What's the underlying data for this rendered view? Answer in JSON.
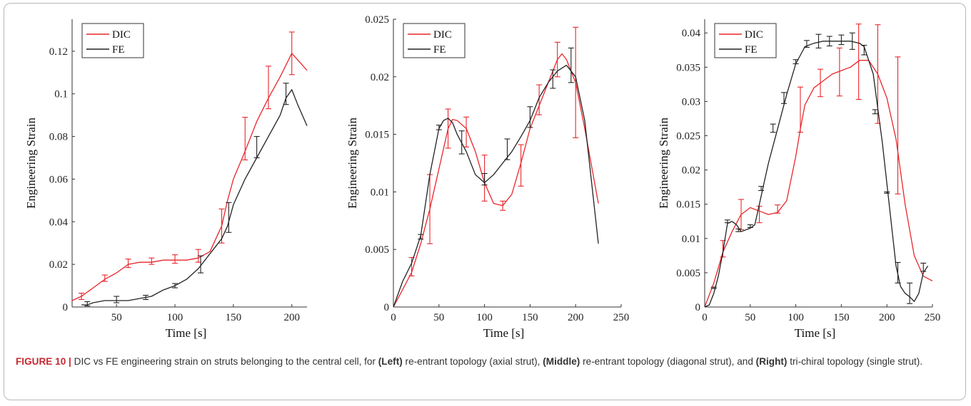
{
  "caption": {
    "label": "FIGURE 10 |",
    "parts": [
      "DIC vs FE engineering strain on struts belonging to the central cell, for ",
      "(Left)",
      " re-entrant topology (axial strut), ",
      "(Middle)",
      " re-entrant topology (diagonal strut), and ",
      "(Right)",
      " tri-chiral topology (single strut)."
    ]
  },
  "colors": {
    "DIC": "#e8262b",
    "FE": "#222222"
  },
  "chart_data": [
    {
      "type": "line",
      "name": "left",
      "xlabel": "Time [s]",
      "ylabel": "Engineering Strain",
      "xlim": [
        12,
        213
      ],
      "ylim": [
        0,
        0.135
      ],
      "xticks": [
        50,
        100,
        150,
        200
      ],
      "xtick_labels": [
        "50",
        "100",
        "150",
        "200"
      ],
      "yticks": [
        0,
        0.02,
        0.04,
        0.06,
        0.08,
        0.1,
        0.12
      ],
      "ytick_labels": [
        "0",
        "0.02",
        "0.04",
        "0.06",
        "0.08",
        "0.1",
        "0.12"
      ],
      "legend": {
        "position": "top-left",
        "entries": [
          "DIC",
          "FE"
        ]
      },
      "series": [
        {
          "name": "DIC",
          "x": [
            12,
            20,
            30,
            40,
            50,
            60,
            70,
            80,
            90,
            100,
            110,
            120,
            130,
            140,
            145,
            150,
            160,
            170,
            180,
            190,
            200,
            205,
            213
          ],
          "y": [
            0.003,
            0.005,
            0.009,
            0.013,
            0.016,
            0.02,
            0.021,
            0.021,
            0.022,
            0.022,
            0.022,
            0.023,
            0.026,
            0.038,
            0.05,
            0.06,
            0.073,
            0.087,
            0.098,
            0.108,
            0.119,
            0.116,
            0.111
          ],
          "errorbars": [
            {
              "x": 20,
              "y": 0.005,
              "err": 0.0015
            },
            {
              "x": 40,
              "y": 0.0135,
              "err": 0.0015
            },
            {
              "x": 60,
              "y": 0.0205,
              "err": 0.002
            },
            {
              "x": 80,
              "y": 0.0215,
              "err": 0.0015
            },
            {
              "x": 100,
              "y": 0.0225,
              "err": 0.002
            },
            {
              "x": 120,
              "y": 0.024,
              "err": 0.003
            },
            {
              "x": 140,
              "y": 0.038,
              "err": 0.008
            },
            {
              "x": 160,
              "y": 0.079,
              "err": 0.01
            },
            {
              "x": 180,
              "y": 0.103,
              "err": 0.01
            },
            {
              "x": 200,
              "y": 0.119,
              "err": 0.01
            }
          ]
        },
        {
          "name": "FE",
          "x": [
            20,
            25,
            30,
            40,
            50,
            60,
            70,
            80,
            90,
            100,
            110,
            120,
            130,
            140,
            145,
            150,
            160,
            170,
            180,
            190,
            195,
            200,
            205,
            213
          ],
          "y": [
            0.001,
            0.001,
            0.002,
            0.003,
            0.003,
            0.003,
            0.004,
            0.005,
            0.008,
            0.01,
            0.013,
            0.018,
            0.025,
            0.032,
            0.038,
            0.048,
            0.06,
            0.07,
            0.08,
            0.09,
            0.098,
            0.102,
            0.095,
            0.085
          ],
          "errorbars": [
            {
              "x": 25,
              "y": 0.0015,
              "err": 0.001
            },
            {
              "x": 50,
              "y": 0.0035,
              "err": 0.0015
            },
            {
              "x": 75,
              "y": 0.0045,
              "err": 0.001
            },
            {
              "x": 100,
              "y": 0.01,
              "err": 0.001
            },
            {
              "x": 122,
              "y": 0.02,
              "err": 0.004
            },
            {
              "x": 146,
              "y": 0.042,
              "err": 0.007
            },
            {
              "x": 170,
              "y": 0.075,
              "err": 0.005
            },
            {
              "x": 195,
              "y": 0.1,
              "err": 0.005
            }
          ]
        }
      ]
    },
    {
      "type": "line",
      "name": "middle",
      "xlabel": "Time [s]",
      "ylabel": "Engineering Strain",
      "xlim": [
        0,
        250
      ],
      "ylim": [
        0,
        0.025
      ],
      "xticks": [
        0,
        50,
        100,
        150,
        200,
        250
      ],
      "xtick_labels": [
        "0",
        "50",
        "100",
        "150",
        "200",
        "250"
      ],
      "yticks": [
        0,
        0.005,
        0.01,
        0.015,
        0.02,
        0.025
      ],
      "ytick_labels": [
        "0",
        "0.005",
        "0.01",
        "0.015",
        "0.02",
        "0.025"
      ],
      "legend": {
        "position": "top-left",
        "entries": [
          "DIC",
          "FE"
        ]
      },
      "series": [
        {
          "name": "DIC",
          "x": [
            0,
            10,
            20,
            30,
            40,
            50,
            60,
            65,
            70,
            80,
            90,
            100,
            110,
            120,
            130,
            140,
            150,
            160,
            170,
            180,
            185,
            190,
            200,
            210,
            225
          ],
          "y": [
            0,
            0.0015,
            0.003,
            0.0055,
            0.0085,
            0.012,
            0.0155,
            0.0163,
            0.0162,
            0.0155,
            0.0135,
            0.0108,
            0.009,
            0.0088,
            0.0098,
            0.0125,
            0.0155,
            0.0175,
            0.0195,
            0.0215,
            0.022,
            0.0215,
            0.0195,
            0.0155,
            0.009
          ],
          "errorbars": [
            {
              "x": 20,
              "y": 0.0035,
              "err": 0.0008
            },
            {
              "x": 40,
              "y": 0.0085,
              "err": 0.003
            },
            {
              "x": 60,
              "y": 0.0155,
              "err": 0.0017
            },
            {
              "x": 80,
              "y": 0.0152,
              "err": 0.0013
            },
            {
              "x": 100,
              "y": 0.0112,
              "err": 0.002
            },
            {
              "x": 120,
              "y": 0.0088,
              "err": 0.0004
            },
            {
              "x": 140,
              "y": 0.0123,
              "err": 0.0018
            },
            {
              "x": 160,
              "y": 0.018,
              "err": 0.0013
            },
            {
              "x": 180,
              "y": 0.0215,
              "err": 0.0015
            },
            {
              "x": 200,
              "y": 0.0195,
              "err": 0.0048
            }
          ]
        },
        {
          "name": "FE",
          "x": [
            0,
            10,
            20,
            30,
            40,
            50,
            55,
            60,
            65,
            70,
            80,
            90,
            100,
            110,
            120,
            130,
            140,
            150,
            160,
            170,
            180,
            190,
            200,
            210,
            225
          ],
          "y": [
            0,
            0.0022,
            0.0038,
            0.0062,
            0.0115,
            0.0155,
            0.0162,
            0.0164,
            0.016,
            0.015,
            0.0135,
            0.0115,
            0.0108,
            0.0115,
            0.0125,
            0.0135,
            0.0148,
            0.0162,
            0.0182,
            0.0195,
            0.0205,
            0.021,
            0.02,
            0.0162,
            0.0055
          ],
          "errorbars": [
            {
              "x": 30,
              "y": 0.0061,
              "err": 0.0002
            },
            {
              "x": 50,
              "y": 0.0156,
              "err": 0.0002
            },
            {
              "x": 75,
              "y": 0.0143,
              "err": 0.001
            },
            {
              "x": 100,
              "y": 0.0111,
              "err": 0.0005
            },
            {
              "x": 125,
              "y": 0.0137,
              "err": 0.0009
            },
            {
              "x": 150,
              "y": 0.0165,
              "err": 0.0009
            },
            {
              "x": 175,
              "y": 0.0198,
              "err": 0.0008
            },
            {
              "x": 195,
              "y": 0.021,
              "err": 0.0015
            }
          ]
        }
      ]
    },
    {
      "type": "line",
      "name": "right",
      "xlabel": "Time [s]",
      "ylabel": "Engineering Strain",
      "xlim": [
        0,
        250
      ],
      "ylim": [
        0,
        0.042
      ],
      "xticks": [
        0,
        50,
        100,
        150,
        200,
        250
      ],
      "xtick_labels": [
        "0",
        "50",
        "100",
        "150",
        "200",
        "250"
      ],
      "yticks": [
        0,
        0.005,
        0.01,
        0.015,
        0.02,
        0.025,
        0.03,
        0.035,
        0.04
      ],
      "ytick_labels": [
        "0",
        "0.005",
        "0.01",
        "0.015",
        "0.02",
        "0.025",
        "0.03",
        "0.035",
        "0.04"
      ],
      "legend": {
        "position": "top-left",
        "entries": [
          "DIC",
          "FE"
        ]
      },
      "series": [
        {
          "name": "DIC",
          "x": [
            0,
            10,
            20,
            30,
            40,
            50,
            60,
            70,
            80,
            90,
            100,
            105,
            110,
            120,
            130,
            140,
            150,
            160,
            170,
            180,
            190,
            200,
            210,
            220,
            230,
            240,
            250
          ],
          "y": [
            0,
            0.0035,
            0.008,
            0.011,
            0.0135,
            0.0145,
            0.014,
            0.0135,
            0.0138,
            0.0155,
            0.022,
            0.026,
            0.0295,
            0.032,
            0.033,
            0.034,
            0.0345,
            0.035,
            0.036,
            0.036,
            0.034,
            0.0305,
            0.0245,
            0.015,
            0.0075,
            0.0045,
            0.0038
          ],
          "errorbars": [
            {
              "x": 20,
              "y": 0.0085,
              "err": 0.0012
            },
            {
              "x": 40,
              "y": 0.0135,
              "err": 0.0022
            },
            {
              "x": 60,
              "y": 0.0135,
              "err": 0.0012
            },
            {
              "x": 80,
              "y": 0.0143,
              "err": 0.0006
            },
            {
              "x": 105,
              "y": 0.0288,
              "err": 0.0033
            },
            {
              "x": 127,
              "y": 0.0327,
              "err": 0.002
            },
            {
              "x": 148,
              "y": 0.0343,
              "err": 0.0035
            },
            {
              "x": 169,
              "y": 0.0358,
              "err": 0.0055
            },
            {
              "x": 190,
              "y": 0.034,
              "err": 0.0072
            },
            {
              "x": 212,
              "y": 0.0265,
              "err": 0.01
            }
          ]
        },
        {
          "name": "FE",
          "x": [
            0,
            5,
            10,
            15,
            20,
            25,
            30,
            35,
            40,
            50,
            55,
            60,
            65,
            70,
            80,
            90,
            100,
            110,
            120,
            130,
            140,
            150,
            160,
            170,
            175,
            180,
            185,
            190,
            195,
            200,
            205,
            210,
            215,
            220,
            225,
            230,
            235,
            240,
            245
          ],
          "y": [
            0,
            0.0003,
            0.002,
            0.0045,
            0.008,
            0.0122,
            0.0125,
            0.012,
            0.011,
            0.0115,
            0.012,
            0.015,
            0.018,
            0.021,
            0.026,
            0.031,
            0.0355,
            0.038,
            0.0385,
            0.0388,
            0.0388,
            0.0388,
            0.0388,
            0.0385,
            0.038,
            0.036,
            0.034,
            0.029,
            0.024,
            0.018,
            0.012,
            0.006,
            0.003,
            0.002,
            0.0015,
            0.0008,
            0.002,
            0.005,
            0.006
          ],
          "errorbars": [
            {
              "x": 10,
              "y": 0.0028,
              "err": 0.0001
            },
            {
              "x": 25,
              "y": 0.0125,
              "err": 0.0002
            },
            {
              "x": 37,
              "y": 0.0112,
              "err": 0.0002
            },
            {
              "x": 50,
              "y": 0.0118,
              "err": 0.0002
            },
            {
              "x": 62,
              "y": 0.0173,
              "err": 0.0003
            },
            {
              "x": 75,
              "y": 0.0261,
              "err": 0.0006
            },
            {
              "x": 87,
              "y": 0.0305,
              "err": 0.0008
            },
            {
              "x": 100,
              "y": 0.0358,
              "err": 0.0003
            },
            {
              "x": 112,
              "y": 0.0384,
              "err": 0.0005
            },
            {
              "x": 125,
              "y": 0.0388,
              "err": 0.001
            },
            {
              "x": 137,
              "y": 0.0388,
              "err": 0.0007
            },
            {
              "x": 150,
              "y": 0.039,
              "err": 0.0007
            },
            {
              "x": 162,
              "y": 0.0388,
              "err": 0.0012
            },
            {
              "x": 175,
              "y": 0.0375,
              "err": 0.0007
            },
            {
              "x": 187,
              "y": 0.0285,
              "err": 0.0003
            },
            {
              "x": 200,
              "y": 0.0167,
              "err": 0.0001
            },
            {
              "x": 212,
              "y": 0.005,
              "err": 0.0015
            },
            {
              "x": 225,
              "y": 0.002,
              "err": 0.0015
            },
            {
              "x": 240,
              "y": 0.0058,
              "err": 0.0006
            }
          ]
        }
      ]
    }
  ]
}
